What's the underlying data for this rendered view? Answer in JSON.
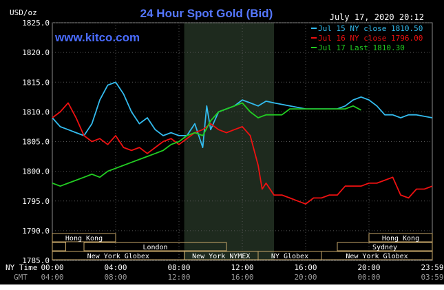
{
  "chart_data": {
    "type": "line",
    "title": "24 Hour Spot Gold (Bid)",
    "ylabel": "USD/oz",
    "timestamp": "July 17, 2020 20:12",
    "watermark": "www.kitco.com",
    "ylim": [
      1785.0,
      1825.0
    ],
    "yticks": [
      "1825.0",
      "1820.0",
      "1815.0",
      "1810.0",
      "1805.0",
      "1800.0",
      "1795.0",
      "1790.0",
      "1785.0"
    ],
    "xticks_ny": [
      "00:00",
      "04:00",
      "08:00",
      "12:00",
      "16:00",
      "20:00",
      "23:59"
    ],
    "xticks_gmt": [
      "04:00",
      "08:00",
      "12:00",
      "16:00",
      "20:00",
      "00:00",
      "03:59"
    ],
    "x_row_labels": {
      "ny": "NY Time",
      "gmt": "GMT"
    },
    "shaded_session": "New York NYMEX",
    "grid": true,
    "legend_position": "top-right",
    "sessions": [
      "Hong Kong",
      "London",
      "New York Globex",
      "New York NYMEX",
      "NY Globex",
      "Hong Kong",
      "Sydney",
      "New York Globex"
    ],
    "series": [
      {
        "name": "Jul 15 NY close 1810.50",
        "color": "#33bbee",
        "x": [
          0,
          0.5,
          1,
          1.5,
          2,
          2.5,
          3,
          3.5,
          4,
          4.25,
          4.5,
          5,
          5.5,
          6,
          6.5,
          7,
          7.5,
          8,
          8.5,
          9,
          9.5,
          9.75,
          10,
          10.5,
          11,
          11.5,
          12,
          12.5,
          13,
          13.5,
          14,
          15,
          16,
          17,
          18,
          18.5,
          19,
          19.5,
          20,
          20.5,
          21,
          21.5,
          22,
          22.5,
          23,
          24
        ],
        "values": [
          1809,
          1807.5,
          1807,
          1806.5,
          1806,
          1808,
          1812,
          1814.5,
          1815,
          1814,
          1813,
          1810,
          1808,
          1809,
          1807,
          1806,
          1806.5,
          1806,
          1806,
          1808,
          1804,
          1811,
          1807,
          1810,
          1810.5,
          1811,
          1812,
          1811.5,
          1811,
          1811.8,
          1811.5,
          1811,
          1810.5,
          1810.5,
          1810.5,
          1811,
          1812,
          1812.5,
          1812,
          1811,
          1809.5,
          1809.5,
          1809,
          1809.5,
          1809.5,
          1809
        ]
      },
      {
        "name": "Jul 16 NY close 1796.00",
        "color": "#ee1111",
        "x": [
          0,
          0.5,
          1,
          1.5,
          2,
          2.5,
          3,
          3.5,
          4,
          4.5,
          5,
          5.5,
          6,
          6.5,
          7,
          7.5,
          8,
          8.5,
          9,
          9.5,
          10,
          10.5,
          11,
          11.5,
          12,
          12.5,
          13,
          13.25,
          13.5,
          14,
          14.5,
          15,
          15.5,
          16,
          16.5,
          17,
          17.5,
          18,
          18.5,
          19,
          19.5,
          20,
          20.5,
          21,
          21.5,
          22,
          22.5,
          23,
          23.5,
          24
        ],
        "values": [
          1809,
          1810,
          1811.5,
          1809,
          1806,
          1805,
          1805.5,
          1804.5,
          1806,
          1804,
          1803.5,
          1804,
          1803,
          1804,
          1805,
          1805.5,
          1804.5,
          1805.5,
          1806.5,
          1807,
          1808,
          1807,
          1806.5,
          1807,
          1807.5,
          1806,
          1801,
          1797,
          1798,
          1796,
          1796,
          1795.5,
          1795,
          1794.5,
          1795.5,
          1795.5,
          1796,
          1796,
          1797.5,
          1797.5,
          1797.5,
          1798,
          1798,
          1798.5,
          1799,
          1796,
          1795.5,
          1797,
          1797,
          1797.5
        ]
      },
      {
        "name": "Jul 17 Last 1810.30",
        "color": "#22cc22",
        "x": [
          0,
          0.5,
          1,
          1.5,
          2,
          2.5,
          3,
          3.5,
          4,
          4.5,
          5,
          5.5,
          6,
          6.5,
          7,
          7.5,
          8,
          8.5,
          9,
          9.5,
          10,
          10.5,
          11,
          11.5,
          12,
          12.5,
          13,
          13.5,
          14,
          14.5,
          15,
          15.5,
          16,
          16.5,
          17,
          17.5,
          18,
          18.5,
          19,
          19.5
        ],
        "values": [
          1798,
          1797.5,
          1798,
          1798.5,
          1799,
          1799.5,
          1799,
          1800,
          1800.5,
          1801,
          1801.5,
          1802,
          1802.5,
          1803,
          1803.5,
          1804.5,
          1805,
          1806,
          1806.5,
          1806,
          1808.5,
          1810,
          1810.5,
          1811,
          1811.5,
          1810,
          1809,
          1809.5,
          1809.5,
          1809.5,
          1810.5,
          1810.5,
          1810.5,
          1810.5,
          1810.5,
          1810.5,
          1810.5,
          1810.5,
          1811,
          1810.3
        ]
      }
    ]
  }
}
